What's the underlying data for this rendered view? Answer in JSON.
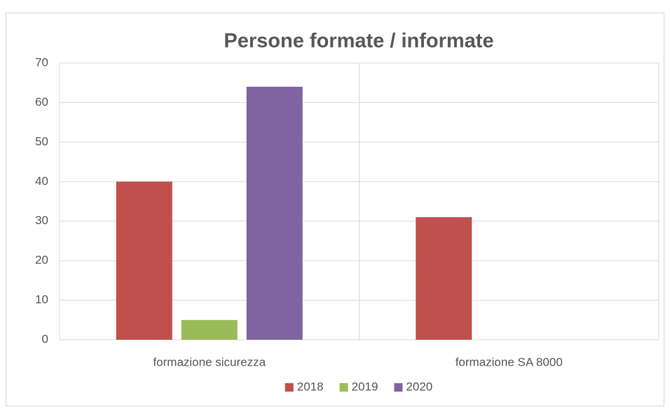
{
  "chart_data": {
    "type": "bar",
    "title": "Persone formate / informate",
    "categories": [
      "formazione sicurezza",
      "formazione SA 8000"
    ],
    "series": [
      {
        "name": "2018",
        "color": "#c0504d",
        "values": [
          40,
          31
        ]
      },
      {
        "name": "2019",
        "color": "#9bbb59",
        "values": [
          5,
          0
        ]
      },
      {
        "name": "2020",
        "color": "#8064a2",
        "values": [
          64,
          0
        ]
      }
    ],
    "ylim": [
      0,
      70
    ],
    "yticks": [
      0,
      10,
      20,
      30,
      40,
      50,
      60,
      70
    ],
    "grid": true,
    "legend": "bottom"
  }
}
